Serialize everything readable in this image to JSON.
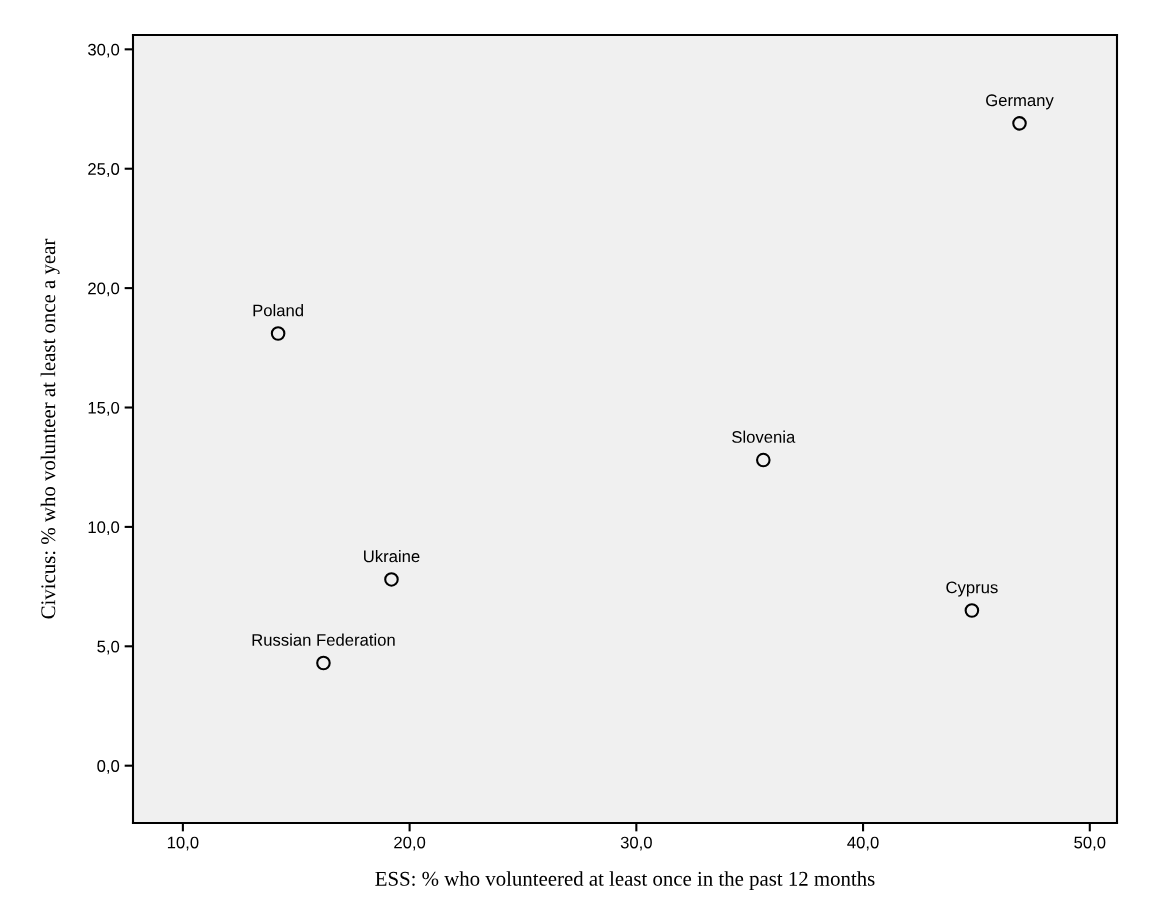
{
  "chart_data": {
    "type": "scatter",
    "xlabel": "ESS: % who volunteered at least once in the past 12 months",
    "ylabel": "Civicus: % who volunteer at least once a year",
    "annotations": [
      {
        "text": "Germany",
        "x": 46.9,
        "y": 26.9
      },
      {
        "text": "Poland",
        "x": 14.2,
        "y": 18.1
      },
      {
        "text": "Slovenia",
        "x": 35.6,
        "y": 12.8
      },
      {
        "text": "Ukraine",
        "x": 19.2,
        "y": 7.8
      },
      {
        "text": "Russian Federation",
        "x": 16.2,
        "y": 4.3
      },
      {
        "text": "Cyprus",
        "x": 44.8,
        "y": 6.5
      }
    ],
    "x": [
      46.9,
      14.2,
      35.6,
      19.2,
      16.2,
      44.8
    ],
    "values": [
      26.9,
      18.1,
      12.8,
      7.8,
      4.3,
      6.5
    ],
    "color": "#000000",
    "marker": "circle",
    "grid": false,
    "legend": false,
    "xlim": [
      7.8,
      51.2
    ],
    "ylim": [
      -2.4,
      30.6
    ],
    "xticks": [
      {
        "value": 10,
        "label": "10,0"
      },
      {
        "value": 20,
        "label": "20,0"
      },
      {
        "value": 30,
        "label": "30,0"
      },
      {
        "value": 40,
        "label": "40,0"
      },
      {
        "value": 50,
        "label": "50,0"
      }
    ],
    "yticks": [
      {
        "value": 0,
        "label": "0,0"
      },
      {
        "value": 5,
        "label": "5,0"
      },
      {
        "value": 10,
        "label": "10,0"
      },
      {
        "value": 15,
        "label": "15,0"
      },
      {
        "value": 20,
        "label": "20,0"
      },
      {
        "value": 25,
        "label": "25,0"
      },
      {
        "value": 30,
        "label": "30,0"
      }
    ]
  }
}
